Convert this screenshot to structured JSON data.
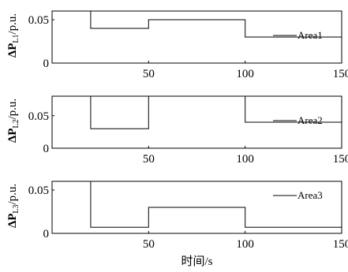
{
  "colors": {
    "line": "#000000",
    "axis": "#000000",
    "background": "#ffffff"
  },
  "xlabel": "时间/s",
  "chart_data": [
    {
      "type": "line",
      "ylabel_main": "ΔP",
      "ylabel_sub": "L1",
      "ylabel_unit": "/p.u.",
      "legend": "Area1",
      "legend_position": "center-right",
      "xlim": [
        0,
        150
      ],
      "ylim": [
        0,
        0.06
      ],
      "xticks": [
        50,
        100,
        150
      ],
      "xtick_labels": [
        "50",
        "100",
        "150"
      ],
      "yticks": [
        0,
        0.05
      ],
      "ytick_labels": [
        "0",
        "0.05"
      ],
      "series": [
        {
          "name": "Area1",
          "points": [
            [
              20,
              0.06
            ],
            [
              20,
              0.04
            ],
            [
              50,
              0.04
            ],
            [
              50,
              0.05
            ],
            [
              100,
              0.05
            ],
            [
              100,
              0.03
            ],
            [
              150,
              0.03
            ]
          ]
        }
      ]
    },
    {
      "type": "line",
      "ylabel_main": "ΔP",
      "ylabel_sub": "L2",
      "ylabel_unit": "/p.u.",
      "legend": "Area2",
      "legend_position": "center-right",
      "xlim": [
        0,
        150
      ],
      "ylim": [
        0,
        0.08
      ],
      "xticks": [
        50,
        100,
        150
      ],
      "xtick_labels": [
        "50",
        "100",
        "150"
      ],
      "yticks": [
        0,
        0.05
      ],
      "ytick_labels": [
        "0",
        "0.05"
      ],
      "series": [
        {
          "name": "Area2",
          "points": [
            [
              20,
              0.08
            ],
            [
              20,
              0.03
            ],
            [
              50,
              0.03
            ],
            [
              50,
              0.08
            ],
            [
              50,
              0.08
            ],
            [
              100,
              0.08
            ],
            [
              100,
              0.04
            ],
            [
              150,
              0.04
            ]
          ]
        }
      ]
    },
    {
      "type": "line",
      "ylabel_main": "ΔP",
      "ylabel_sub": "L3",
      "ylabel_unit": "/p.u.",
      "legend": "Area3",
      "legend_position": "top-right",
      "xlim": [
        0,
        150
      ],
      "ylim": [
        0,
        0.06
      ],
      "xticks": [
        50,
        100,
        150
      ],
      "xtick_labels": [
        "50",
        "100",
        "150"
      ],
      "yticks": [
        0,
        0.05
      ],
      "ytick_labels": [
        "0",
        "0.05"
      ],
      "series": [
        {
          "name": "Area3",
          "points": [
            [
              20,
              0.06
            ],
            [
              20,
              0.007
            ],
            [
              50,
              0.007
            ],
            [
              50,
              0.03
            ],
            [
              100,
              0.03
            ],
            [
              100,
              0.007
            ],
            [
              150,
              0.007
            ]
          ]
        }
      ]
    }
  ]
}
